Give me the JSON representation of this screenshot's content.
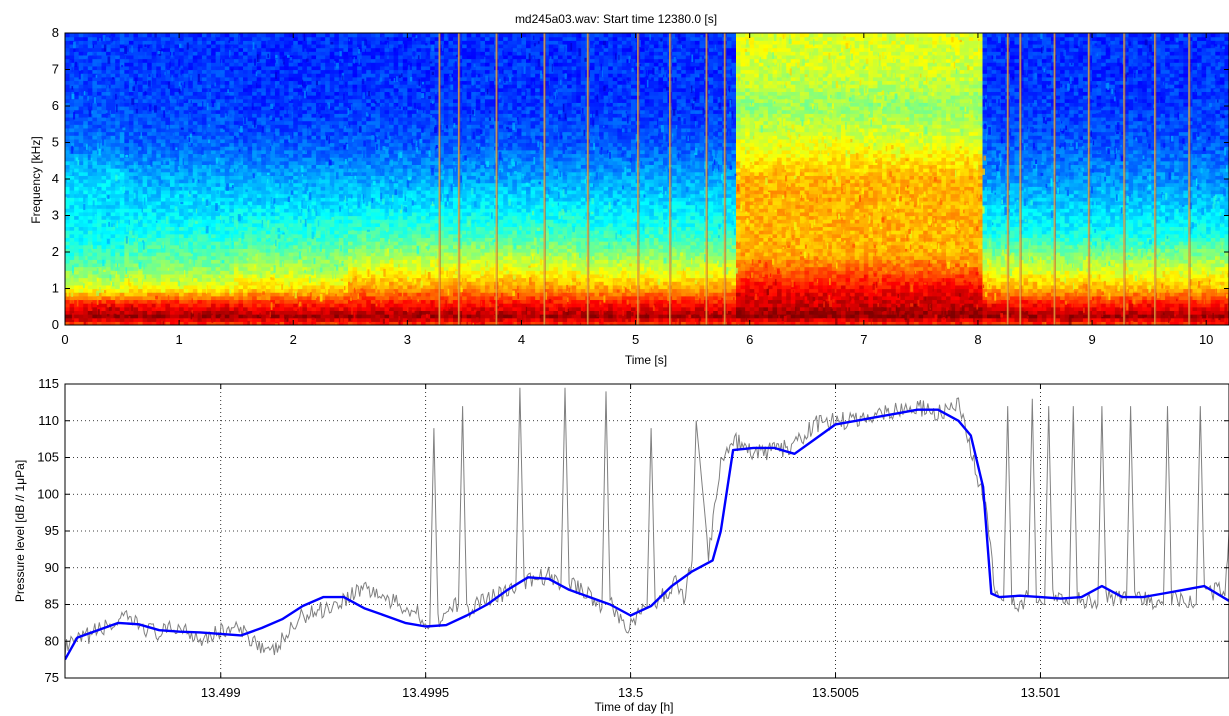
{
  "figure": {
    "title": "md245a03.wav:  Start time 12380.0 [s]"
  },
  "chart_data": [
    {
      "type": "heatmap",
      "subtype": "spectrogram",
      "title": "md245a03.wav:  Start time 12380.0 [s]",
      "xlabel": "Time [s]",
      "ylabel": "Frequency [kHz]",
      "xlim": [
        0,
        10.2
      ],
      "ylim": [
        0,
        8
      ],
      "xticks": [
        0,
        1,
        2,
        3,
        4,
        5,
        6,
        7,
        8,
        9,
        10
      ],
      "yticks": [
        0,
        1,
        2,
        3,
        4,
        5,
        6,
        7,
        8
      ],
      "colormap": "jet",
      "grid": false,
      "transients_s": [
        3.28,
        3.45,
        3.78,
        4.2,
        4.58,
        5.02,
        5.3,
        5.62,
        5.78,
        8.26,
        8.37,
        8.67,
        8.97,
        9.28,
        9.55,
        9.85
      ],
      "broadband_event_s": [
        5.88,
        8.05
      ],
      "bands_kHz": [
        {
          "f": 0.0,
          "level": [
            0.8,
            0.8,
            0.8,
            0.8,
            0.8,
            0.8,
            0.8,
            0.8,
            0.8,
            0.8,
            0.8
          ]
        },
        {
          "f": 0.25,
          "level": [
            0.97,
            0.97,
            0.96,
            0.96,
            0.96,
            0.96,
            0.96,
            0.98,
            0.97,
            0.96,
            0.96
          ]
        },
        {
          "f": 0.6,
          "level": [
            0.85,
            0.85,
            0.84,
            0.86,
            0.86,
            0.86,
            0.86,
            0.92,
            0.86,
            0.85,
            0.85
          ]
        },
        {
          "f": 1.0,
          "level": [
            0.6,
            0.62,
            0.66,
            0.73,
            0.73,
            0.71,
            0.71,
            0.88,
            0.71,
            0.7,
            0.7
          ]
        },
        {
          "f": 1.5,
          "level": [
            0.5,
            0.52,
            0.56,
            0.62,
            0.62,
            0.6,
            0.6,
            0.78,
            0.6,
            0.59,
            0.59
          ]
        },
        {
          "f": 2.0,
          "level": [
            0.42,
            0.45,
            0.48,
            0.52,
            0.53,
            0.5,
            0.5,
            0.7,
            0.5,
            0.49,
            0.49
          ]
        },
        {
          "f": 2.5,
          "level": [
            0.38,
            0.4,
            0.42,
            0.44,
            0.44,
            0.42,
            0.42,
            0.7,
            0.4,
            0.39,
            0.39
          ]
        },
        {
          "f": 3.0,
          "level": [
            0.35,
            0.36,
            0.37,
            0.38,
            0.38,
            0.37,
            0.37,
            0.7,
            0.35,
            0.35,
            0.35
          ]
        },
        {
          "f": 4.0,
          "level": [
            0.34,
            0.3,
            0.29,
            0.29,
            0.29,
            0.29,
            0.29,
            0.7,
            0.27,
            0.27,
            0.27
          ]
        },
        {
          "f": 5.0,
          "level": [
            0.24,
            0.22,
            0.21,
            0.21,
            0.21,
            0.21,
            0.21,
            0.6,
            0.21,
            0.21,
            0.21
          ]
        },
        {
          "f": 6.0,
          "level": [
            0.2,
            0.19,
            0.18,
            0.18,
            0.18,
            0.18,
            0.18,
            0.52,
            0.18,
            0.18,
            0.18
          ]
        },
        {
          "f": 7.0,
          "level": [
            0.19,
            0.18,
            0.17,
            0.17,
            0.17,
            0.17,
            0.17,
            0.58,
            0.17,
            0.17,
            0.17
          ]
        },
        {
          "f": 8.0,
          "level": [
            0.18,
            0.17,
            0.17,
            0.17,
            0.17,
            0.17,
            0.17,
            0.6,
            0.17,
            0.17,
            0.17
          ]
        }
      ]
    },
    {
      "type": "line",
      "xlabel": "Time of day [h]",
      "ylabel": "Pressure level [dB // 1μPa]",
      "xlim": [
        13.49862,
        13.50146
      ],
      "ylim": [
        75,
        115
      ],
      "xticks": [
        13.499,
        13.4995,
        13.5,
        13.5005,
        13.501
      ],
      "xtick_labels": [
        "13.499",
        "13.4995",
        "13.5",
        "13.5005",
        "13.501"
      ],
      "yticks": [
        75,
        80,
        85,
        90,
        95,
        100,
        105,
        110,
        115
      ],
      "grid": true,
      "grid_style": "dotted",
      "series": [
        {
          "color": "#0000ff",
          "style": "smoothed",
          "x": [
            13.49862,
            13.49865,
            13.49875,
            13.4988,
            13.49885,
            13.4989,
            13.49895,
            13.499,
            13.49905,
            13.4991,
            13.49915,
            13.4992,
            13.49925,
            13.4993,
            13.49935,
            13.4994,
            13.49945,
            13.4995,
            13.49955,
            13.4996,
            13.49965,
            13.4997,
            13.49975,
            13.4998,
            13.49985,
            13.4999,
            13.49995,
            13.5,
            13.50005,
            13.5001,
            13.50015,
            13.5002,
            13.50022,
            13.50025,
            13.5003,
            13.50035,
            13.5004,
            13.50045,
            13.5005,
            13.50055,
            13.5006,
            13.50065,
            13.5007,
            13.50075,
            13.5008,
            13.50083,
            13.50086,
            13.50088,
            13.5009,
            13.50095,
            13.501,
            13.50105,
            13.5011,
            13.50115,
            13.5012,
            13.50125,
            13.5013,
            13.50135,
            13.5014,
            13.50146
          ],
          "y": [
            77.5,
            80.5,
            82.5,
            82.3,
            81.5,
            81.3,
            81.2,
            81.0,
            80.8,
            81.8,
            83.0,
            84.8,
            86.0,
            86.0,
            84.5,
            83.5,
            82.5,
            82.0,
            82.2,
            83.5,
            85.0,
            87.0,
            88.7,
            88.5,
            87.0,
            86.0,
            85.0,
            83.5,
            84.8,
            87.5,
            89.5,
            91.0,
            95.0,
            106.0,
            106.3,
            106.3,
            105.5,
            107.5,
            109.5,
            110.0,
            110.5,
            111.0,
            111.5,
            111.5,
            110.0,
            108.0,
            101.0,
            86.5,
            86.0,
            86.2,
            86.0,
            85.8,
            86.0,
            87.5,
            86.0,
            86.0,
            86.5,
            87.0,
            87.5,
            85.5
          ]
        },
        {
          "color": "#808080",
          "style": "raw",
          "x": [
            13.49862,
            13.4987,
            13.49877,
            13.49885,
            13.4989,
            13.49895,
            13.49903,
            13.49909,
            13.49912,
            13.4992,
            13.49928,
            13.49935,
            13.49941,
            13.49948,
            13.49951,
            13.49952,
            13.49953,
            13.49958,
            13.49959,
            13.4996,
            13.49965,
            13.49972,
            13.49973,
            13.49974,
            13.4998,
            13.49983,
            13.49984,
            13.49985,
            13.4999,
            13.49993,
            13.49994,
            13.49995,
            13.49999,
            13.50004,
            13.50005,
            13.50006,
            13.50011,
            13.50013,
            13.50015,
            13.50016,
            13.50019,
            13.50022,
            13.50025,
            13.5003,
            13.50035,
            13.5004,
            13.50045,
            13.5005,
            13.50055,
            13.5006,
            13.50065,
            13.5007,
            13.50075,
            13.5008,
            13.50083,
            13.50087,
            13.50089,
            13.50091,
            13.50092,
            13.50093,
            13.50095,
            13.50097,
            13.50098,
            13.50099,
            13.50101,
            13.50102,
            13.50103,
            13.50107,
            13.50108,
            13.50109,
            13.50114,
            13.50115,
            13.50116,
            13.50121,
            13.50122,
            13.50123,
            13.5013,
            13.50131,
            13.50132,
            13.50138,
            13.50139,
            13.5014,
            13.50145,
            13.50146
          ],
          "y": [
            79.0,
            81.5,
            83.0,
            81.0,
            82.0,
            80.5,
            81.8,
            80.0,
            78.0,
            83.5,
            85.0,
            87.5,
            85.5,
            84.0,
            82.0,
            109.0,
            83.0,
            85.0,
            112.0,
            84.0,
            86.0,
            87.0,
            114.5,
            88.0,
            89.0,
            87.5,
            114.5,
            88.0,
            86.5,
            84.5,
            114.0,
            85.0,
            82.0,
            84.5,
            109.0,
            85.0,
            88.0,
            86.0,
            91.0,
            110.0,
            92.0,
            104.0,
            107.5,
            105.5,
            106.0,
            106.5,
            109.5,
            110.0,
            110.0,
            111.0,
            111.5,
            111.8,
            111.0,
            112.0,
            106.0,
            97.0,
            86.0,
            85.5,
            112.0,
            86.0,
            85.0,
            86.0,
            113.0,
            86.0,
            85.0,
            112.0,
            86.0,
            85.0,
            112.0,
            86.0,
            85.0,
            112.0,
            86.0,
            85.5,
            112.0,
            86.0,
            85.0,
            112.0,
            86.0,
            85.0,
            112.0,
            86.5,
            87.0,
            95.0
          ]
        }
      ]
    }
  ]
}
